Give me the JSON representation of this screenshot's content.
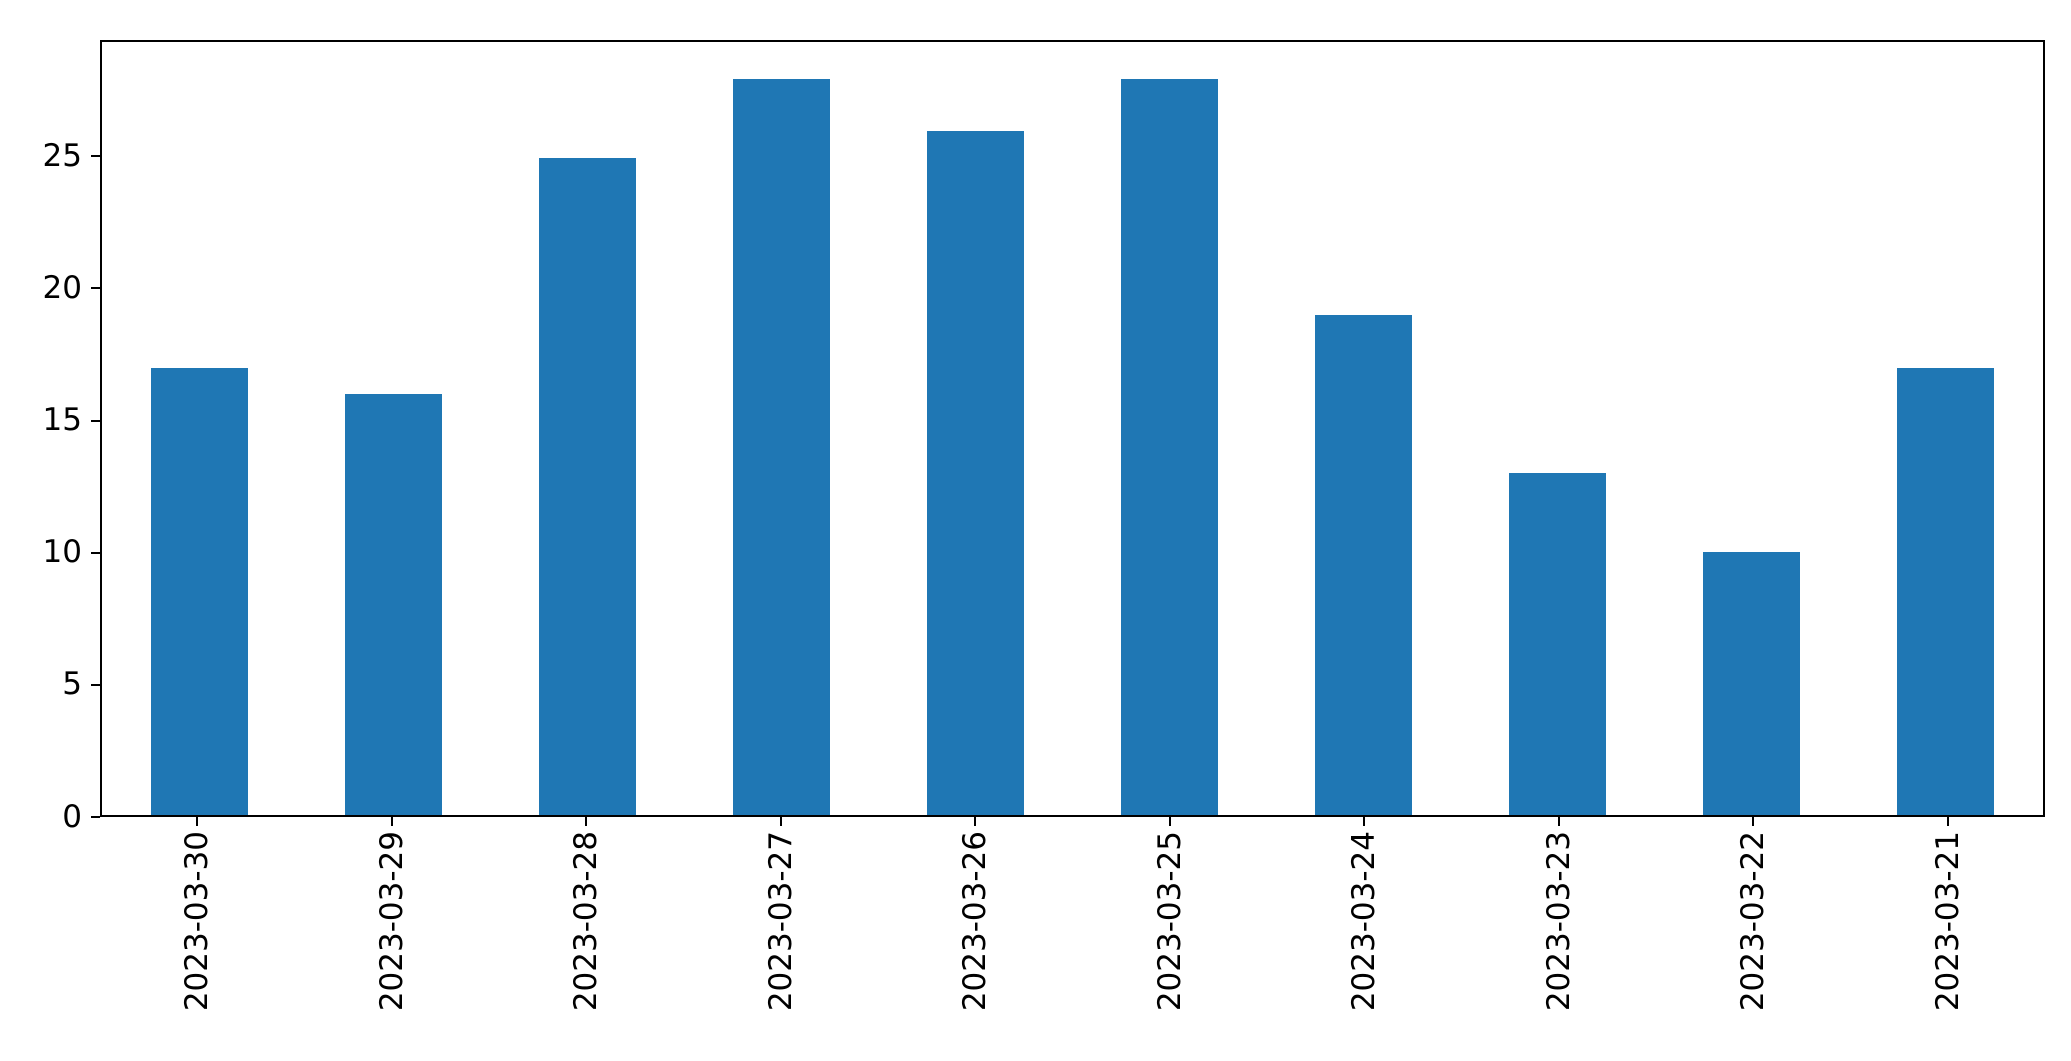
{
  "chart_data": {
    "type": "bar",
    "categories": [
      "2023-03-30",
      "2023-03-29",
      "2023-03-28",
      "2023-03-27",
      "2023-03-26",
      "2023-03-25",
      "2023-03-24",
      "2023-03-23",
      "2023-03-22",
      "2023-03-21"
    ],
    "values": [
      17,
      16,
      25,
      28,
      26,
      28,
      19,
      13,
      10,
      17
    ],
    "title": "",
    "xlabel": "",
    "ylabel": "",
    "ylim": [
      0,
      29.4
    ],
    "yticks": [
      0,
      5,
      10,
      15,
      20,
      25
    ],
    "bar_color": "#1f77b4",
    "bar_width_fraction": 0.5,
    "grid": false,
    "legend_position": "none",
    "x_tick_rotation_deg": 90
  }
}
